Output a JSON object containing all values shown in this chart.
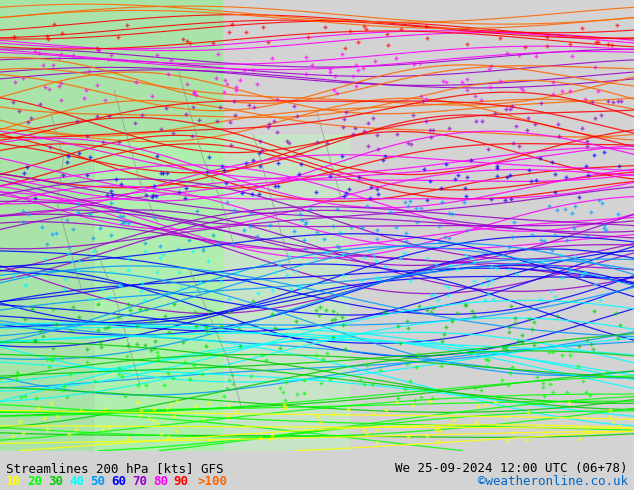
{
  "title_left": "Streamlines 200 hPa [kts] GFS",
  "title_right": "We 25-09-2024 12:00 UTC (06+78)",
  "credit": "©weatheronline.co.uk",
  "legend_values": [
    "10",
    "20",
    "30",
    "40",
    "50",
    "60",
    "70",
    "80",
    "90",
    ">100"
  ],
  "legend_colors": [
    "#ffff00",
    "#00ff00",
    "#00cc00",
    "#00ffff",
    "#0099ff",
    "#0000ff",
    "#9900cc",
    "#ff00ff",
    "#ff0000",
    "#ff6600"
  ],
  "background_color": "#d3d3d3",
  "map_bg_color": "#c8c8c8",
  "fig_width": 6.34,
  "fig_height": 4.9,
  "dpi": 100,
  "bottom_bar_color": "#ffffff",
  "text_color": "#000000",
  "credit_color": "#0066cc",
  "title_fontsize": 9,
  "legend_fontsize": 9
}
